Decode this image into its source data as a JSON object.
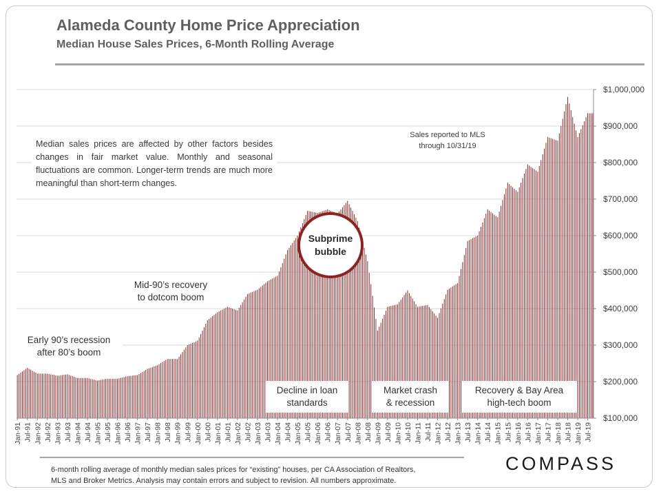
{
  "header": {
    "title": "Alameda County Home Price Appreciation",
    "subtitle": "Median House Sales Prices, 6-Month Rolling Average"
  },
  "annotations": {
    "note": "Median sales prices are affected by other factors besides changes in fair market value. Monthly and seasonal fluctuations are common. Longer-term trends are much more meaningful than short-term changes.",
    "sales_reported_line1": "Sales reported to MLS",
    "sales_reported_line2": "through 10/31/19",
    "early90s_line1": "Early 90’s recession",
    "early90s_line2": "after 80’s boom",
    "mid90s_line1": "Mid-90’s recovery",
    "mid90s_line2": "to dotcom boom",
    "subprime_line1": "Subprime",
    "subprime_line2": "bubble",
    "decline_line1": "Decline in loan",
    "decline_line2": "standards",
    "crash_line1": "Market crash",
    "crash_line2": "& recession",
    "recovery_line1": "Recovery & Bay Area",
    "recovery_line2": "high-tech boom"
  },
  "footer": {
    "line1": "6-month rolling average of monthly median sales prices for “existing” houses, per CA Association of Realtors,",
    "line2": "MLS and Broker Metrics.  Analysis may contain errors and subject to revision. All numbers approximate."
  },
  "logo": "COMPASS",
  "colors": {
    "bar": "#8b2a2a",
    "bubble_border": "#8c2323",
    "text": "#5f5f5f"
  },
  "chart_data": {
    "type": "bar",
    "x_start": "Jan-91",
    "x_end": "Oct-19",
    "interval": "monthly",
    "ylim": [
      100000,
      1000000
    ],
    "y_ticks": [
      100000,
      200000,
      300000,
      400000,
      500000,
      600000,
      700000,
      800000,
      900000,
      1000000
    ],
    "y_tick_labels": [
      "$100,000",
      "$200,000",
      "$300,000",
      "$400,000",
      "$500,000",
      "$600,000",
      "$700,000",
      "$800,000",
      "$900,000",
      "$1,000,000"
    ],
    "y_axis_position": "right",
    "x_tick_labels": [
      "Jan-91",
      "Jul-91",
      "Jan-92",
      "Jul-92",
      "Jan-93",
      "Jul-93",
      "Jan-94",
      "Jul-94",
      "Jan-95",
      "Jul-95",
      "Jan-96",
      "Jul-96",
      "Jan-97",
      "Jul-97",
      "Jan-98",
      "Jul-98",
      "Jan-99",
      "Jul-99",
      "Jan-00",
      "Jul-00",
      "Jan-01",
      "Jul-01",
      "Jan-02",
      "Jul-02",
      "Jan-03",
      "Jul-03",
      "Jan-04",
      "Jul-04",
      "Jan-05",
      "Jul-05",
      "Jan-06",
      "Jul-06",
      "Jan-07",
      "Jul-07",
      "Jan-08",
      "Jul-08",
      "Jan-09",
      "Jul-09",
      "Jan-10",
      "Jul-10",
      "Jan-11",
      "Jul-11",
      "Jan-12",
      "Jul-12",
      "Jan-13",
      "Jul-13",
      "Jan-14",
      "Jul-14",
      "Jan-15",
      "Jul-15",
      "Jan-16",
      "Jul-16",
      "Jan-17",
      "Jul-17",
      "Jan-18",
      "Jul-18",
      "Jan-19",
      "Jul-19"
    ],
    "keypoints": [
      [
        "Jan-91",
        218000
      ],
      [
        "Jul-91",
        238000
      ],
      [
        "Jan-92",
        222000
      ],
      [
        "Jul-92",
        222000
      ],
      [
        "Jan-93",
        216000
      ],
      [
        "Jul-93",
        220000
      ],
      [
        "Jan-94",
        210000
      ],
      [
        "Jul-94",
        210000
      ],
      [
        "Jan-95",
        203000
      ],
      [
        "Jul-95",
        208000
      ],
      [
        "Jan-96",
        208000
      ],
      [
        "Jul-96",
        215000
      ],
      [
        "Jan-97",
        218000
      ],
      [
        "Jul-97",
        235000
      ],
      [
        "Jan-98",
        245000
      ],
      [
        "Jul-98",
        262000
      ],
      [
        "Jan-99",
        262000
      ],
      [
        "Jul-99",
        300000
      ],
      [
        "Jan-00",
        312000
      ],
      [
        "Jul-00",
        368000
      ],
      [
        "Jan-01",
        390000
      ],
      [
        "Jul-01",
        405000
      ],
      [
        "Jan-02",
        395000
      ],
      [
        "Jul-02",
        440000
      ],
      [
        "Jan-03",
        452000
      ],
      [
        "Jul-03",
        475000
      ],
      [
        "Jan-04",
        490000
      ],
      [
        "Jul-04",
        560000
      ],
      [
        "Jan-05",
        600000
      ],
      [
        "Jul-05",
        668000
      ],
      [
        "Jan-06",
        662000
      ],
      [
        "Jul-06",
        672000
      ],
      [
        "Jan-07",
        660000
      ],
      [
        "Jul-07",
        695000
      ],
      [
        "Jan-08",
        640000
      ],
      [
        "Jul-08",
        530000
      ],
      [
        "Jan-09",
        340000
      ],
      [
        "Jul-09",
        405000
      ],
      [
        "Jan-10",
        412000
      ],
      [
        "Jul-10",
        450000
      ],
      [
        "Jan-11",
        405000
      ],
      [
        "Jul-11",
        410000
      ],
      [
        "Jan-12",
        375000
      ],
      [
        "Jul-12",
        452000
      ],
      [
        "Jan-13",
        470000
      ],
      [
        "Jul-13",
        585000
      ],
      [
        "Jan-14",
        600000
      ],
      [
        "Jul-14",
        672000
      ],
      [
        "Jan-15",
        650000
      ],
      [
        "Jul-15",
        745000
      ],
      [
        "Jan-16",
        720000
      ],
      [
        "Jul-16",
        795000
      ],
      [
        "Jan-17",
        775000
      ],
      [
        "Jul-17",
        870000
      ],
      [
        "Jan-18",
        860000
      ],
      [
        "Jul-18",
        980000
      ],
      [
        "Jan-19",
        870000
      ],
      [
        "Jul-19",
        935000
      ],
      [
        "Oct-19",
        935000
      ]
    ]
  }
}
